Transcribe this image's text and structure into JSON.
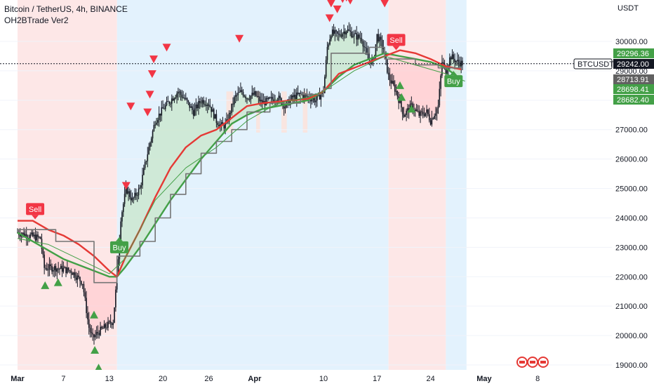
{
  "header": {
    "title": "Bitcoin / TetherUS, 4h, BINANCE",
    "indicator": "OH2BTrade Ver2"
  },
  "axis": {
    "currency": "USDT",
    "symbol_tag": "BTCUSDT"
  },
  "colors": {
    "up": "#26a69a",
    "down": "#ef5350",
    "buy": "#43a047",
    "sell": "#f23645",
    "candle": "#131722",
    "zone_red": "#fde7e7",
    "zone_blue": "#e3f2fd",
    "fill_green": "#c8e6c9",
    "fill_red": "#ffcdd2",
    "ma_red": "#e53935",
    "ma_green": "#43a047",
    "step_line": "#757575"
  },
  "chart_data": {
    "type": "candlestick",
    "title": "Bitcoin / TetherUS, 4h, BINANCE",
    "indicator": "OH2BTrade Ver2",
    "y_unit": "USDT",
    "ylim": [
      18800,
      31500
    ],
    "y_ticks": [
      19000,
      20000,
      21000,
      22000,
      23000,
      24000,
      25000,
      26000,
      27000,
      28000,
      29000,
      30000
    ],
    "y_tick_labels": [
      "19000.00",
      "20000.00",
      "21000.00",
      "22000.00",
      "23000.00",
      "24000.00",
      "25000.00",
      "26000.00",
      "27000.00",
      "28000.00",
      "29000.00",
      "30000.00"
    ],
    "x_range_days": [
      0,
      68
    ],
    "x_ticks": [
      {
        "day": 0,
        "label": "Mar"
      },
      {
        "day": 6,
        "label": "7"
      },
      {
        "day": 12,
        "label": "13"
      },
      {
        "day": 19,
        "label": "20"
      },
      {
        "day": 25,
        "label": "26"
      },
      {
        "day": 31,
        "label": "Apr"
      },
      {
        "day": 40,
        "label": "10"
      },
      {
        "day": 47,
        "label": "17"
      },
      {
        "day": 54,
        "label": "24"
      },
      {
        "day": 61,
        "label": "May"
      },
      {
        "day": 68,
        "label": "8"
      }
    ],
    "price_path": [
      [
        0,
        23500
      ],
      [
        1.5,
        23400
      ],
      [
        3,
        23300
      ],
      [
        3.5,
        22300
      ],
      [
        5,
        22300
      ],
      [
        7,
        22200
      ],
      [
        8.5,
        21800
      ],
      [
        9.3,
        20300
      ],
      [
        9.8,
        19900
      ],
      [
        10.5,
        20100
      ],
      [
        11.5,
        20300
      ],
      [
        12.5,
        20500
      ],
      [
        13,
        22000
      ],
      [
        13.5,
        24000
      ],
      [
        14.2,
        25000
      ],
      [
        15,
        24600
      ],
      [
        16,
        25000
      ],
      [
        17,
        26200
      ],
      [
        18,
        27300
      ],
      [
        19,
        27700
      ],
      [
        20,
        28000
      ],
      [
        21,
        28300
      ],
      [
        22,
        28000
      ],
      [
        23,
        27600
      ],
      [
        24,
        28000
      ],
      [
        25,
        27900
      ],
      [
        26,
        27300
      ],
      [
        26.8,
        27100
      ],
      [
        27.3,
        27200
      ],
      [
        27.8,
        27600
      ],
      [
        28.4,
        28100
      ],
      [
        29.3,
        28300
      ],
      [
        30,
        28100
      ],
      [
        31,
        28200
      ],
      [
        32,
        27900
      ],
      [
        33,
        28000
      ],
      [
        34,
        28100
      ],
      [
        35,
        27800
      ],
      [
        36,
        28100
      ],
      [
        37,
        28200
      ],
      [
        38,
        28100
      ],
      [
        39,
        28000
      ],
      [
        40,
        28300
      ],
      [
        40.5,
        29800
      ],
      [
        41,
        30300
      ],
      [
        42,
        30200
      ],
      [
        43,
        30400
      ],
      [
        44,
        30200
      ],
      [
        45,
        30100
      ],
      [
        45.8,
        29400
      ],
      [
        46.5,
        29300
      ],
      [
        47,
        30200
      ],
      [
        47.8,
        29800
      ],
      [
        48.5,
        28800
      ],
      [
        49.5,
        28300
      ],
      [
        50.5,
        27500
      ],
      [
        51.5,
        27800
      ],
      [
        52.5,
        27500
      ],
      [
        53.5,
        27600
      ],
      [
        54,
        27300
      ],
      [
        55,
        27800
      ],
      [
        55.5,
        29300
      ],
      [
        56,
        29000
      ],
      [
        56.6,
        29500
      ],
      [
        57.5,
        29300
      ],
      [
        58.2,
        29250
      ]
    ],
    "series": [
      {
        "name": "29296.36",
        "color": "#43a047",
        "points": [
          [
            0,
            23500
          ],
          [
            2,
            23200
          ],
          [
            4,
            22900
          ],
          [
            6,
            22600
          ],
          [
            8,
            22400
          ],
          [
            10,
            22200
          ],
          [
            12,
            22000
          ],
          [
            13,
            22000
          ],
          [
            14,
            22300
          ],
          [
            16,
            23000
          ],
          [
            18,
            23800
          ],
          [
            20,
            24600
          ],
          [
            22,
            25300
          ],
          [
            24,
            26000
          ],
          [
            26,
            26600
          ],
          [
            28,
            27200
          ],
          [
            30,
            27500
          ],
          [
            32,
            27700
          ],
          [
            34,
            27800
          ],
          [
            36,
            27900
          ],
          [
            38,
            28000
          ],
          [
            40,
            28300
          ],
          [
            42,
            28800
          ],
          [
            44,
            29200
          ],
          [
            46,
            29400
          ],
          [
            48,
            29600
          ],
          [
            50,
            29500
          ],
          [
            52,
            29400
          ],
          [
            54,
            29300
          ],
          [
            56,
            29100
          ],
          [
            58,
            28700
          ]
        ]
      },
      {
        "name": "28713.91",
        "color": "#e53935",
        "points": [
          [
            0,
            23900
          ],
          [
            2,
            23900
          ],
          [
            4,
            23600
          ],
          [
            6,
            23400
          ],
          [
            8,
            23100
          ],
          [
            10,
            22700
          ],
          [
            12,
            22200
          ],
          [
            13,
            22000
          ],
          [
            14,
            22600
          ],
          [
            16,
            23600
          ],
          [
            18,
            24700
          ],
          [
            20,
            25700
          ],
          [
            22,
            26400
          ],
          [
            24,
            26800
          ],
          [
            26,
            27000
          ],
          [
            28,
            27400
          ],
          [
            30,
            27800
          ],
          [
            32,
            27900
          ],
          [
            34,
            27950
          ],
          [
            36,
            28000
          ],
          [
            38,
            28050
          ],
          [
            40,
            28300
          ],
          [
            42,
            28900
          ],
          [
            44,
            29100
          ],
          [
            46,
            29300
          ],
          [
            48,
            29500
          ],
          [
            50,
            29700
          ],
          [
            52,
            29600
          ],
          [
            54,
            29400
          ],
          [
            56,
            29150
          ],
          [
            58,
            29050
          ]
        ]
      },
      {
        "name": "28698.41",
        "color": "#757575",
        "points": [
          [
            0,
            23600
          ],
          [
            4,
            23600
          ],
          [
            5,
            23200
          ],
          [
            9,
            23200
          ],
          [
            10,
            21800
          ],
          [
            12,
            21800
          ],
          [
            13,
            22700
          ],
          [
            15,
            22700
          ],
          [
            16,
            23200
          ],
          [
            18,
            24000
          ],
          [
            20,
            24800
          ],
          [
            22,
            25500
          ],
          [
            24,
            26200
          ],
          [
            26,
            26600
          ],
          [
            28,
            27000
          ],
          [
            30,
            27600
          ],
          [
            33,
            27900
          ],
          [
            37,
            28200
          ],
          [
            40,
            28400
          ],
          [
            41,
            29600
          ],
          [
            44,
            29600
          ],
          [
            46,
            29800
          ],
          [
            48,
            29400
          ],
          [
            52,
            29200
          ],
          [
            55,
            29100
          ],
          [
            58,
            29100
          ]
        ]
      },
      {
        "name": "28682.40",
        "color": "#43a047",
        "points": [
          [
            0,
            23300
          ],
          [
            4,
            23100
          ],
          [
            8,
            22600
          ],
          [
            12,
            22100
          ],
          [
            14,
            22600
          ],
          [
            18,
            24600
          ],
          [
            22,
            25700
          ],
          [
            26,
            26400
          ],
          [
            30,
            27300
          ],
          [
            34,
            27900
          ],
          [
            38,
            28100
          ],
          [
            40,
            28300
          ],
          [
            44,
            29000
          ],
          [
            48,
            29500
          ],
          [
            52,
            29200
          ],
          [
            56,
            28900
          ],
          [
            58.5,
            28650
          ]
        ]
      }
    ],
    "background_zones": [
      {
        "from": 0,
        "to": 13,
        "color": "red"
      },
      {
        "from": 13,
        "to": 48.5,
        "color": "blue"
      },
      {
        "from": 48.5,
        "to": 56,
        "color": "red"
      },
      {
        "from": 56,
        "to": 58.7,
        "color": "blue"
      }
    ],
    "labels": [
      {
        "text": "Sell",
        "day": 2.3,
        "price": 24300,
        "type": "sell"
      },
      {
        "text": "Buy",
        "day": 13.3,
        "price": 23000,
        "type": "buy"
      },
      {
        "text": "Sell",
        "day": 49.5,
        "price": 30050,
        "type": "sell"
      },
      {
        "text": "Buy",
        "day": 57,
        "price": 28650,
        "type": "buy"
      }
    ],
    "markers_up": [
      [
        3.6,
        21700
      ],
      [
        5.3,
        21800
      ],
      [
        10,
        20700
      ],
      [
        10.1,
        19500
      ],
      [
        10.6,
        18900
      ],
      [
        50,
        28500
      ],
      [
        50.2,
        28100
      ],
      [
        51.5,
        27700
      ]
    ],
    "markers_down": [
      [
        14.2,
        25100
      ],
      [
        14.8,
        27800
      ],
      [
        17,
        27600
      ],
      [
        17.3,
        28200
      ],
      [
        17.6,
        28900
      ],
      [
        17.8,
        29400
      ],
      [
        19.5,
        29800
      ],
      [
        29,
        30100
      ],
      [
        40.8,
        30800
      ],
      [
        41,
        31300
      ],
      [
        41.8,
        31100
      ],
      [
        42.5,
        31450
      ],
      [
        43,
        31500
      ],
      [
        43.5,
        31400
      ],
      [
        48,
        31300
      ]
    ],
    "price_tags": [
      {
        "value": "29296.36",
        "price": 29296,
        "bg": "#43a047"
      },
      {
        "value": "29242.00",
        "price": 29242,
        "bg": "#131722",
        "symbol": true
      },
      {
        "value": "28713.91",
        "price": 28714,
        "bg": "#616161"
      },
      {
        "value": "28698.41",
        "price": 28698,
        "bg": "#43a047"
      },
      {
        "value": "28682.40",
        "price": 28682,
        "bg": "#43a047"
      }
    ]
  }
}
